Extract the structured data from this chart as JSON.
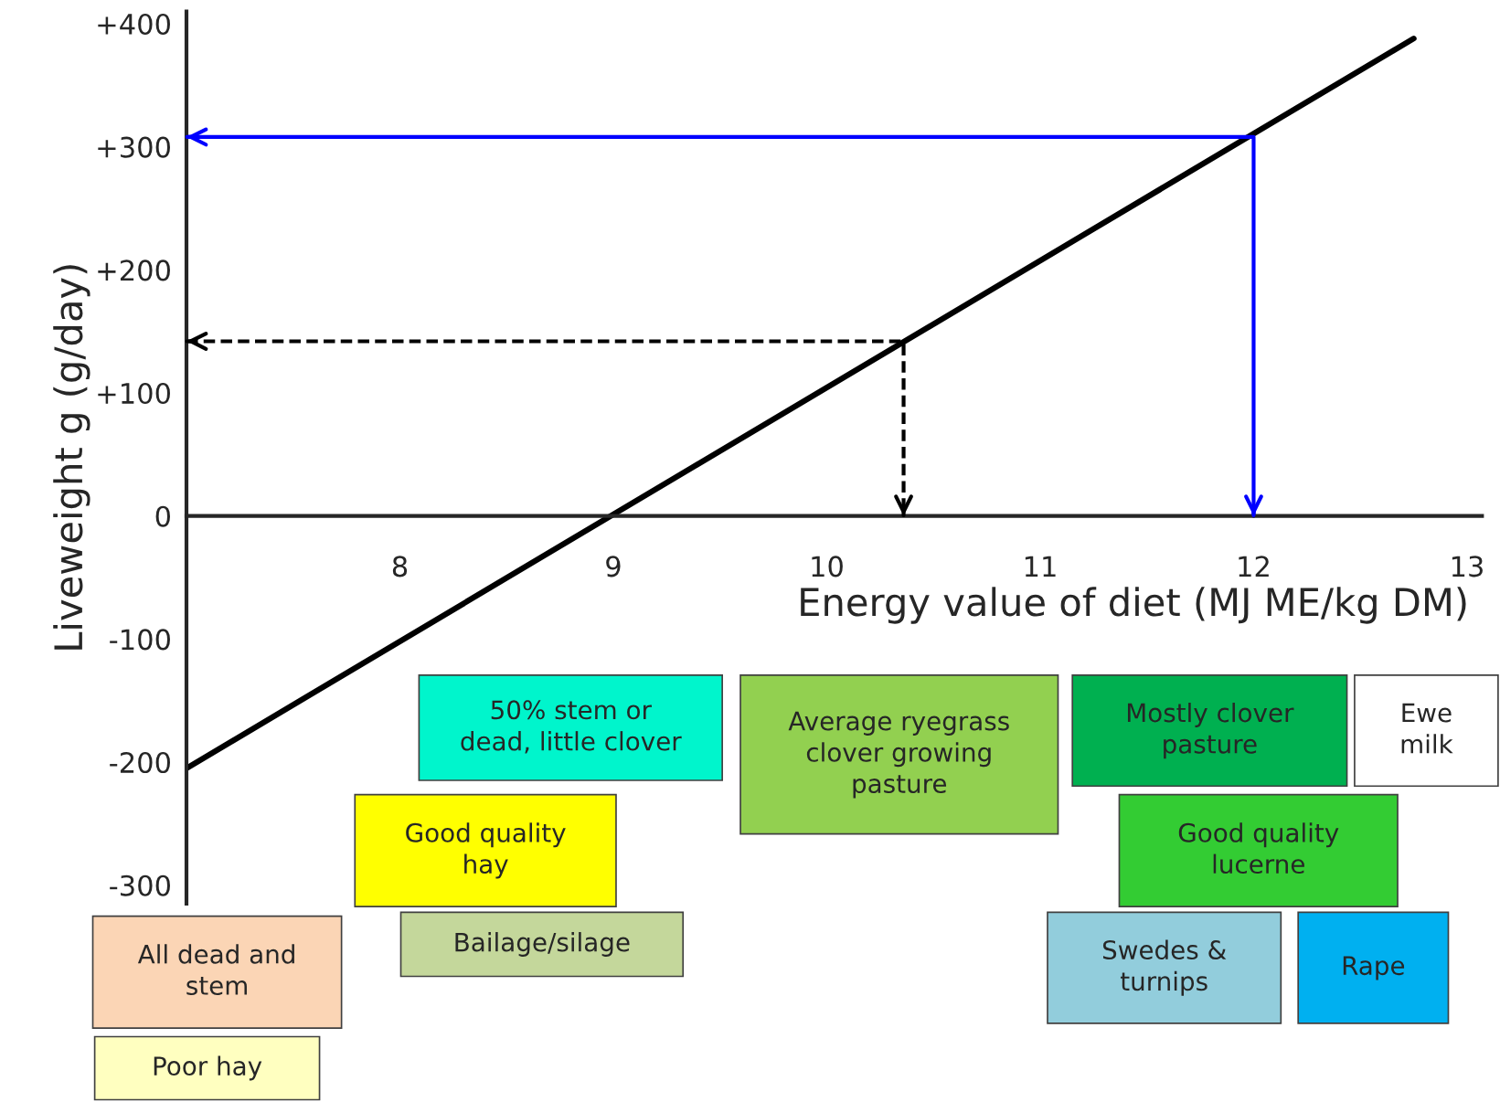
{
  "chart_data": {
    "type": "line",
    "xlabel": "Energy value of diet (MJ ME/kg DM)",
    "ylabel": "Liveweight g (g/day)",
    "xlim": [
      7,
      13.07
    ],
    "ylim": [
      -315,
      410
    ],
    "xticks": [
      8,
      9,
      10,
      11,
      12,
      13
    ],
    "yticks": [
      {
        "value": 400,
        "label": "+400"
      },
      {
        "value": 300,
        "label": "+300"
      },
      {
        "value": 200,
        "label": "+200"
      },
      {
        "value": 100,
        "label": "+100"
      },
      0,
      -100,
      -200,
      -300
    ],
    "grid": false,
    "legend": false,
    "marker": "none",
    "series": [
      {
        "color": "#000000",
        "line_style": "solid",
        "x": [
          7,
          12.75
        ],
        "values": [
          -205,
          388
        ]
      },
      {
        "color": "#0000ff",
        "line_style": "solid",
        "x": [
          7,
          12,
          12
        ],
        "values": [
          308,
          308,
          0
        ]
      },
      {
        "color": "#000000",
        "line_style": "dashed",
        "x": [
          7,
          10.36,
          10.36
        ],
        "values": [
          142,
          142,
          0
        ]
      }
    ],
    "annotations": [
      "50% stem or\ndead, little clover",
      "Average ryegrass\nclover growing\npasture",
      "Mostly clover\npasture",
      "Ewe\nmilk",
      "Good quality\nhay",
      "Good quality\nlucerne",
      "Bailage/silage",
      "Swedes &\nturnips",
      "Rape",
      "All dead and\nstem",
      "Poor hay"
    ]
  }
}
